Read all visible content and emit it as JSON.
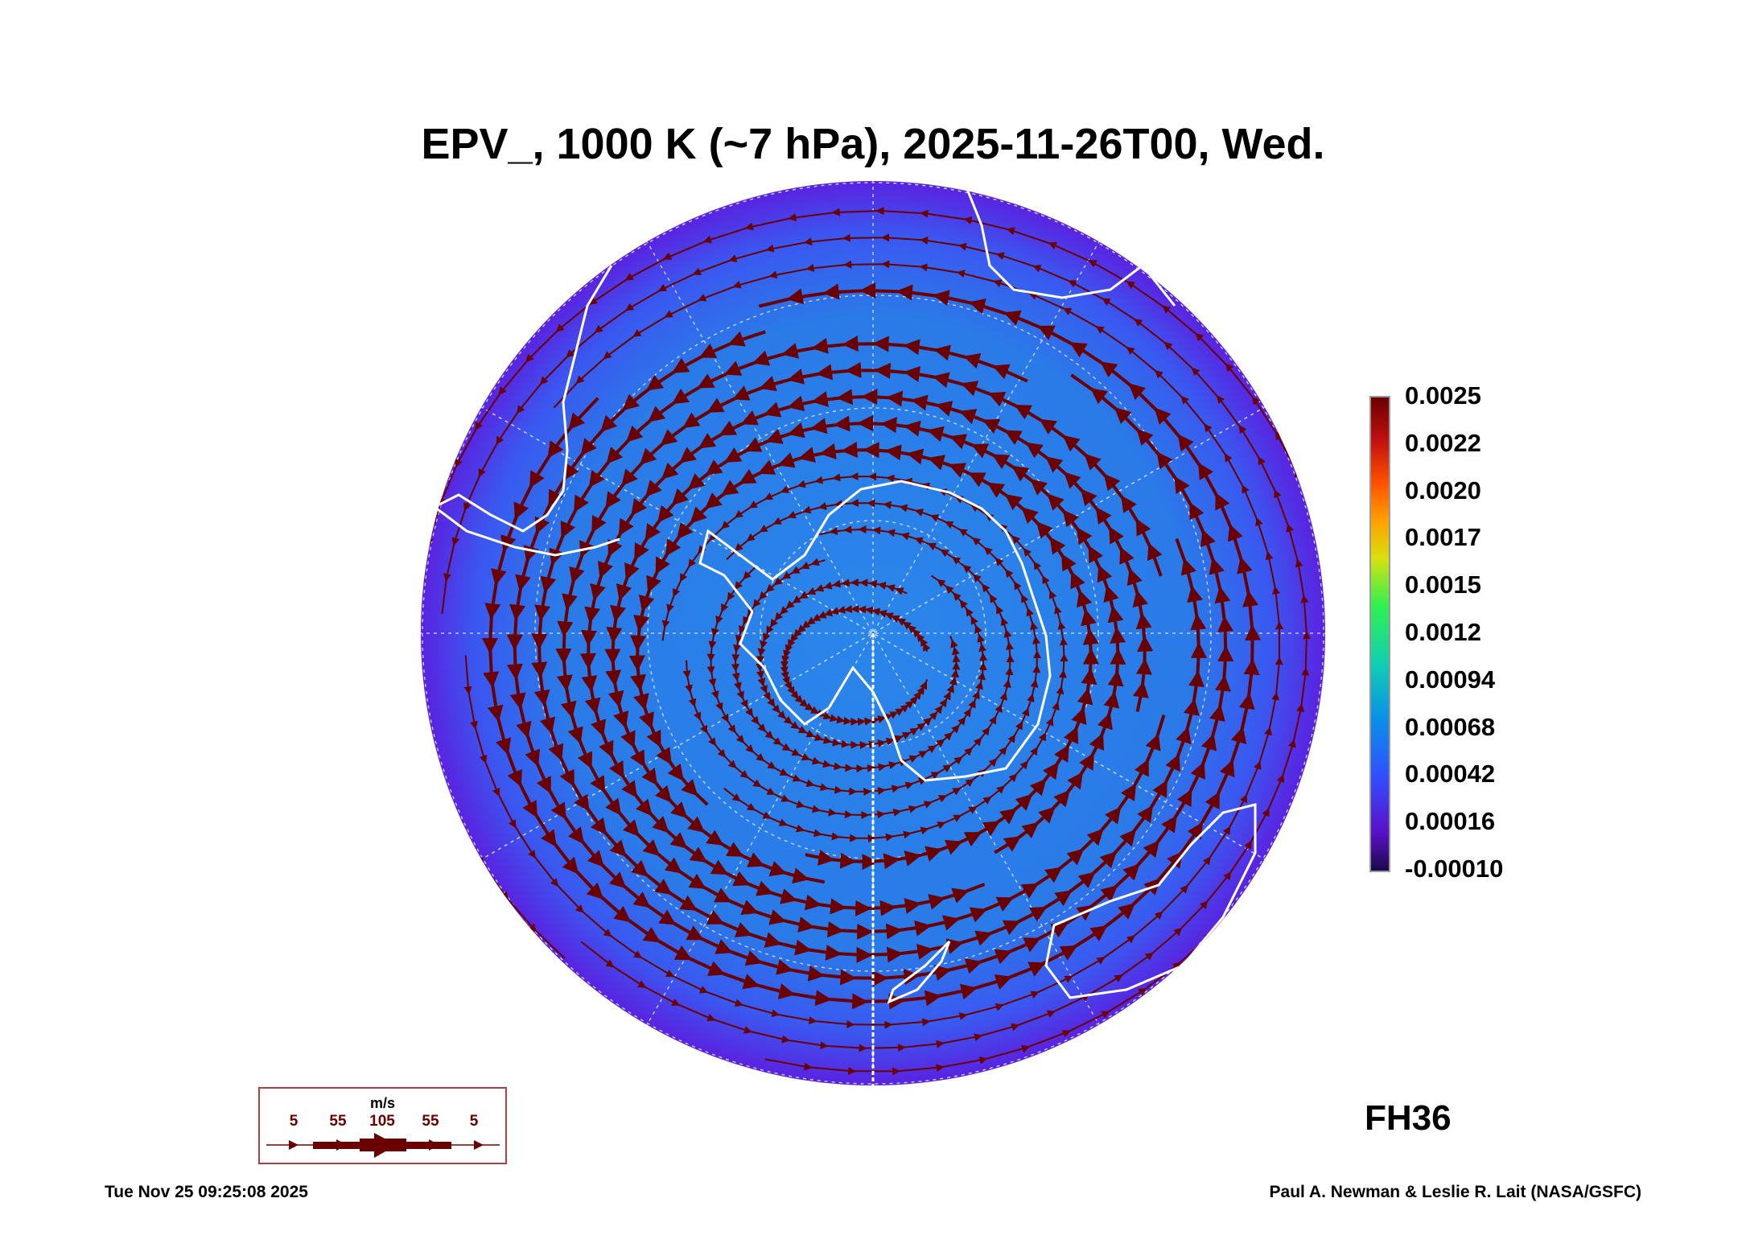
{
  "title": "EPV_, 1000 K (~7 hPa), 2025-11-26T00, Wed.",
  "colorbar": {
    "labels": [
      "0.0025",
      "0.0022",
      "0.0020",
      "0.0017",
      "0.0015",
      "0.0012",
      "0.00094",
      "0.00068",
      "0.00042",
      "0.00016",
      "-0.00010"
    ],
    "min": -0.0001,
    "max": 0.0025
  },
  "wind_legend": {
    "unit": "m/s",
    "values": [
      "5",
      "55",
      "105",
      "55",
      "5"
    ],
    "color": "#6a0000"
  },
  "forecast_hour": "FH36",
  "timestamp": "Tue Nov 25 09:25:08 2025",
  "credit": "Paul A. Newman & Leslie R. Lait (NASA/GSFC)",
  "colors": {
    "streamline": "#6a0000",
    "coast": "#ffffff",
    "background_field": "#2a7ae8",
    "edge_field": "#5a22e0"
  }
}
